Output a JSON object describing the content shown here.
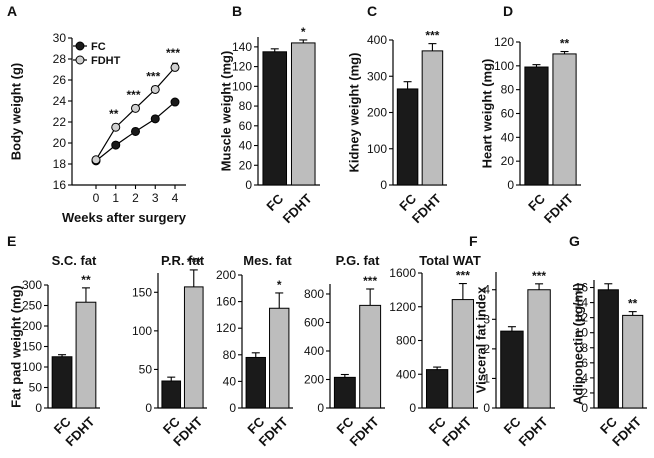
{
  "chart_data": [
    {
      "id": "A",
      "type": "line",
      "panel_letter": "A",
      "x": [
        0,
        1,
        2,
        3,
        4
      ],
      "series": [
        {
          "name": "FC",
          "values": [
            18.3,
            19.8,
            21.1,
            22.3,
            23.9
          ],
          "errors": [
            0.2,
            0.2,
            0.2,
            0.2,
            0.2
          ]
        },
        {
          "name": "FDHT",
          "values": [
            18.4,
            21.5,
            23.3,
            25.1,
            27.2
          ],
          "errors": [
            0.2,
            0.3,
            0.3,
            0.3,
            0.4
          ]
        }
      ],
      "significance": [
        "",
        "**",
        "***",
        "***",
        "***"
      ],
      "ylim": [
        16,
        30
      ],
      "yticks": [
        "16",
        "18",
        "20",
        "22",
        "24",
        "26",
        "28",
        "30"
      ],
      "xticks": [
        "0",
        "1",
        "2",
        "3",
        "4"
      ],
      "xlabel": "Weeks after surgery",
      "ylabel": "Body weight (g)",
      "legend": [
        "FC",
        "FDHT"
      ]
    },
    {
      "id": "B",
      "type": "bar",
      "panel_letter": "B",
      "categories": [
        "FC",
        "FDHT"
      ],
      "values": [
        135,
        144
      ],
      "errors": [
        3,
        3
      ],
      "significance": "*",
      "ylim": [
        0,
        150
      ],
      "yticks": [
        "0",
        "20",
        "40",
        "60",
        "80",
        "100",
        "120",
        "140"
      ],
      "ylabel": "Muscle weight (mg)"
    },
    {
      "id": "C",
      "type": "bar",
      "panel_letter": "C",
      "categories": [
        "FC",
        "FDHT"
      ],
      "values": [
        265,
        370
      ],
      "errors": [
        20,
        20
      ],
      "significance": "***",
      "ylim": [
        0,
        400
      ],
      "yticks": [
        "0",
        "100",
        "200",
        "300",
        "400"
      ],
      "ylabel": "Kidney weight (mg)"
    },
    {
      "id": "D",
      "type": "bar",
      "panel_letter": "D",
      "categories": [
        "FC",
        "FDHT"
      ],
      "values": [
        99,
        110
      ],
      "errors": [
        2,
        2
      ],
      "significance": "**",
      "ylim": [
        0,
        120
      ],
      "yticks": [
        "0",
        "20",
        "40",
        "60",
        "80",
        "100",
        "120"
      ],
      "ylabel": "Heart weight (mg)"
    },
    {
      "id": "E1",
      "type": "bar",
      "panel_letter": "E",
      "title": "S.C. fat",
      "categories": [
        "FC",
        "FDHT"
      ],
      "values": [
        125,
        258
      ],
      "errors": [
        5,
        35
      ],
      "significance": "**",
      "ylim": [
        0,
        300
      ],
      "yticks": [
        "0",
        "50",
        "100",
        "150",
        "200",
        "250",
        "300"
      ],
      "ylabel": "Fat pad weight (mg)"
    },
    {
      "id": "E2",
      "type": "bar",
      "title": "P.R. fat",
      "categories": [
        "FC",
        "FDHT"
      ],
      "values": [
        35,
        157
      ],
      "errors": [
        5,
        22
      ],
      "significance": "***",
      "ylim": [
        0,
        175
      ],
      "yticks": [
        "0",
        "50",
        "100",
        "150"
      ]
    },
    {
      "id": "E3",
      "type": "bar",
      "title": "Mes. fat",
      "categories": [
        "FC",
        "FDHT"
      ],
      "values": [
        76,
        150
      ],
      "errors": [
        7,
        23
      ],
      "significance": "*",
      "ylim": [
        0,
        200
      ],
      "yticks": [
        "0",
        "40",
        "80",
        "120",
        "160",
        "200"
      ]
    },
    {
      "id": "E4",
      "type": "bar",
      "title": "P.G. fat",
      "categories": [
        "FC",
        "FDHT"
      ],
      "values": [
        215,
        720
      ],
      "errors": [
        20,
        115
      ],
      "significance": "***",
      "ylim": [
        0,
        870
      ],
      "yticks": [
        "0",
        "200",
        "400",
        "600",
        "800"
      ]
    },
    {
      "id": "E5",
      "type": "bar",
      "title": "Total WAT",
      "categories": [
        "FC",
        "FDHT"
      ],
      "values": [
        455,
        1285
      ],
      "errors": [
        30,
        190
      ],
      "significance": "***",
      "ylim": [
        0,
        1600
      ],
      "yticks": [
        "0",
        "400",
        "800",
        "1200",
        "1600"
      ]
    },
    {
      "id": "F",
      "type": "bar",
      "panel_letter": "F",
      "categories": [
        "FC",
        "FDHT"
      ],
      "values": [
        2.6,
        4.0
      ],
      "errors": [
        0.15,
        0.2
      ],
      "significance": "***",
      "ylim": [
        0,
        4.6
      ],
      "yticks": [
        "0",
        "1",
        "2",
        "3",
        "4"
      ],
      "ylabel": "Visceral fat index"
    },
    {
      "id": "G",
      "type": "bar",
      "panel_letter": "G",
      "categories": [
        "FC",
        "FDHT"
      ],
      "values": [
        15.7,
        12.3
      ],
      "errors": [
        0.8,
        0.5
      ],
      "significance": "**",
      "ylim": [
        0,
        17
      ],
      "yticks": [
        "0",
        "2",
        "4",
        "6",
        "8",
        "10",
        "12",
        "14",
        "16"
      ],
      "ylabel": "Adiponectin (μg/ml)"
    }
  ],
  "colors": {
    "fc": "#1a1a1a",
    "fdht": "#bdbdbd",
    "axis": "#000000",
    "fc_marker": "#1a1a1a",
    "fdht_marker": "#d0d0d0"
  }
}
